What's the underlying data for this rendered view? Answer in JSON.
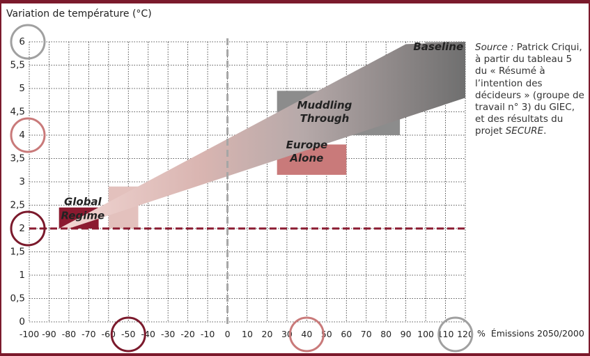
{
  "chart_data": {
    "type": "area",
    "ylabel": "Variation de température (°C)",
    "xlabel": "Émissions 2050/2000",
    "x_unit": "%",
    "xlim": [
      -100,
      120
    ],
    "ylim": [
      0,
      6
    ],
    "x_ticks": [
      "-100",
      "-90",
      "-80",
      "-70",
      "-60",
      "-50",
      "-40",
      "-30",
      "-20",
      "-10",
      "0",
      "10",
      "20",
      "30",
      "40",
      "50",
      "60",
      "70",
      "80",
      "90",
      "100",
      "110",
      "120"
    ],
    "y_ticks": [
      "0",
      "0,5",
      "1",
      "1,5",
      "2",
      "2,5",
      "3",
      "3,5",
      "4",
      "4,5",
      "5",
      "5,5",
      "6"
    ],
    "grid": true,
    "reference_lines": {
      "y": 2,
      "x": 0
    },
    "circled_values": {
      "y": [
        6,
        4,
        2
      ],
      "x": [
        -50,
        40,
        115
      ]
    },
    "scenarios": [
      {
        "name": "Global",
        "name2": "Regime",
        "x_range": [
          -85,
          -65
        ],
        "y_range": [
          2.0,
          2.45
        ],
        "color": "#8b1a30"
      },
      {
        "name": "",
        "name2": "",
        "x_range": [
          -60,
          -45
        ],
        "y_range": [
          2.0,
          2.9
        ],
        "color": "#e3c1bd"
      },
      {
        "name": "Europe",
        "name2": "Alone",
        "x_range": [
          25,
          60
        ],
        "y_range": [
          3.15,
          3.8
        ],
        "color": "#c97a7a"
      },
      {
        "name": "Muddling",
        "name2": "Through",
        "x_range": [
          25,
          87
        ],
        "y_range": [
          4.0,
          4.95
        ],
        "color": "#8c8c8c"
      },
      {
        "name": "Baseline",
        "name2": "",
        "x_range": [
          100,
          120
        ],
        "y_range": [
          5.0,
          6.0
        ],
        "color": "#a0a0a0"
      }
    ],
    "band": {
      "lower": [
        [
          -80,
          2.0
        ],
        [
          120,
          4.8
        ]
      ],
      "upper": [
        [
          -85,
          2.0
        ],
        [
          90,
          5.95
        ],
        [
          120,
          6.0
        ]
      ]
    }
  },
  "source_note": {
    "label": "Source :",
    "text": " Patrick Criqui, à partir du tableau 5 du « Résumé à l’intention des décideurs » (groupe de travail n° 3) du GIEC, et des résultats du projet ",
    "project": "SECURE",
    "end": "."
  }
}
